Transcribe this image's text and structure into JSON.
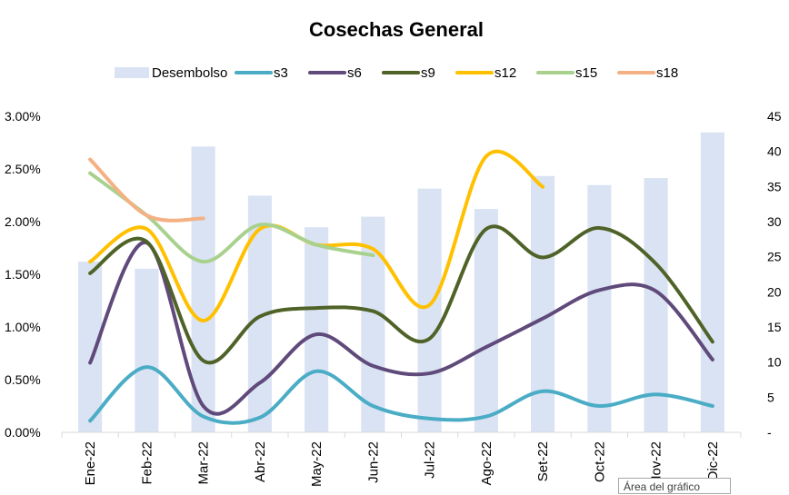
{
  "chart_data": {
    "type": "bar+line",
    "title": "Cosechas General",
    "categories": [
      "Ene-22",
      "Feb-22",
      "Mar-22",
      "Abr-22",
      "May-22",
      "Jun-22",
      "Jul-22",
      "Ago-22",
      "Set-22",
      "Oct-22",
      "Nov-22",
      "Dic-22"
    ],
    "y_left": {
      "min": 0,
      "max": 0.03,
      "ticks": [
        "0.00%",
        "0.50%",
        "1.00%",
        "1.50%",
        "2.00%",
        "2.50%",
        "3.00%"
      ]
    },
    "y_right": {
      "min": 0,
      "max": 45,
      "ticks": [
        "-",
        "5",
        "10",
        "15",
        "20",
        "25",
        "30",
        "35",
        "40",
        "45"
      ]
    },
    "bar_series": {
      "name": "Desembolso",
      "color": "#dae3f3",
      "axis": "right",
      "values": [
        24.3,
        23.3,
        40.7,
        33.7,
        29.2,
        30.7,
        34.7,
        31.8,
        36.5,
        35.2,
        36.2,
        42.7
      ]
    },
    "series": [
      {
        "name": "s3",
        "color": "#4bacc6",
        "values": [
          0.0011,
          0.0062,
          0.0015,
          0.0014,
          0.0058,
          0.0025,
          0.0013,
          0.0015,
          0.0039,
          0.0025,
          0.0036,
          0.0025
        ]
      },
      {
        "name": "s6",
        "color": "#604a7b",
        "values": [
          0.0066,
          0.018,
          0.0025,
          0.0047,
          0.0093,
          0.0063,
          0.0056,
          0.0081,
          0.0108,
          0.0135,
          0.0134,
          0.0069
        ]
      },
      {
        "name": "s9",
        "color": "#4f6228",
        "values": [
          0.0151,
          0.0181,
          0.0068,
          0.011,
          0.0118,
          0.0115,
          0.0089,
          0.0193,
          0.0166,
          0.0194,
          0.016,
          0.0086
        ]
      },
      {
        "name": "s12",
        "color": "#ffc000",
        "values": [
          0.0162,
          0.0193,
          0.0106,
          0.0193,
          0.0178,
          0.0174,
          0.0121,
          0.0262,
          0.0233,
          null,
          null,
          null
        ]
      },
      {
        "name": "s15",
        "color": "#a9d18e",
        "values": [
          0.0246,
          0.0206,
          0.0162,
          0.0197,
          0.0178,
          0.0168,
          null,
          null,
          null,
          null,
          null,
          null
        ]
      },
      {
        "name": "s18",
        "color": "#f4b183",
        "values": [
          0.0259,
          0.0206,
          0.0203,
          null,
          null,
          null,
          null,
          null,
          null,
          null,
          null,
          null
        ]
      }
    ],
    "legend_position": "top",
    "grid": false
  },
  "overlay": {
    "tooltip": "Área del gráfico"
  }
}
